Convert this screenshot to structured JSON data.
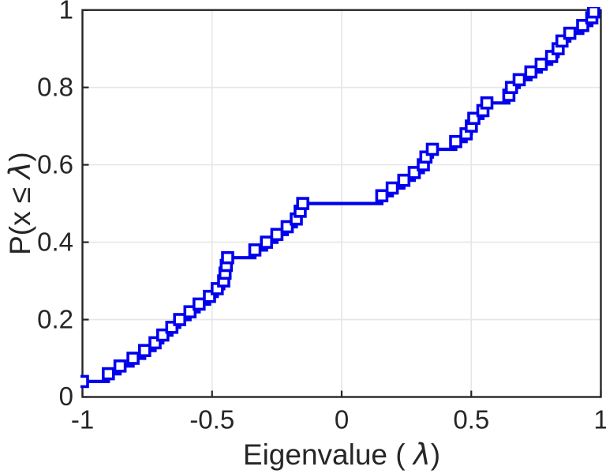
{
  "figure": {
    "background": "#ffffff"
  },
  "colors": {
    "line": "#0000EE",
    "marker_face": "#ffffff",
    "grid": "#e6e6e6",
    "axis": "#262626",
    "text": "#262626"
  },
  "chart_data": {
    "type": "line",
    "subtype": "ecdf-stairs-with-square-markers",
    "title": "",
    "xlabel": "Eigenvalue (  λ)",
    "ylabel": "P(x ≤ λ)",
    "xlim": [
      -1,
      1
    ],
    "ylim": [
      0,
      1
    ],
    "grid": true,
    "legend": "none",
    "x_ticks": [
      -1,
      -0.5,
      0,
      0.5,
      1
    ],
    "x_tick_labels": [
      "-1",
      "-0.5",
      "0",
      "0.5",
      "1"
    ],
    "y_ticks": [
      0,
      0.2,
      0.4,
      0.6,
      0.8,
      1
    ],
    "y_tick_labels": [
      "0",
      "0.2",
      "0.4",
      "0.6",
      "0.8",
      "1"
    ],
    "series": [
      {
        "name": "empirical-cdf-of-eigenvalues",
        "points": [
          [
            -1.0,
            0.04
          ],
          [
            -0.9,
            0.06
          ],
          [
            -0.855,
            0.08
          ],
          [
            -0.805,
            0.1
          ],
          [
            -0.76,
            0.12
          ],
          [
            -0.72,
            0.14
          ],
          [
            -0.69,
            0.16
          ],
          [
            -0.655,
            0.18
          ],
          [
            -0.625,
            0.2
          ],
          [
            -0.585,
            0.22
          ],
          [
            -0.55,
            0.24
          ],
          [
            -0.51,
            0.26
          ],
          [
            -0.48,
            0.28
          ],
          [
            -0.455,
            0.3
          ],
          [
            -0.45,
            0.32
          ],
          [
            -0.445,
            0.34
          ],
          [
            -0.44,
            0.36
          ],
          [
            -0.335,
            0.38
          ],
          [
            -0.29,
            0.4
          ],
          [
            -0.25,
            0.42
          ],
          [
            -0.21,
            0.44
          ],
          [
            -0.175,
            0.46
          ],
          [
            -0.16,
            0.48
          ],
          [
            -0.15,
            0.5
          ],
          [
            0.155,
            0.52
          ],
          [
            0.195,
            0.54
          ],
          [
            0.24,
            0.56
          ],
          [
            0.28,
            0.58
          ],
          [
            0.315,
            0.6
          ],
          [
            0.325,
            0.62
          ],
          [
            0.35,
            0.64
          ],
          [
            0.44,
            0.66
          ],
          [
            0.48,
            0.68
          ],
          [
            0.5,
            0.7
          ],
          [
            0.51,
            0.72
          ],
          [
            0.545,
            0.74
          ],
          [
            0.56,
            0.76
          ],
          [
            0.645,
            0.78
          ],
          [
            0.655,
            0.8
          ],
          [
            0.685,
            0.82
          ],
          [
            0.73,
            0.84
          ],
          [
            0.77,
            0.86
          ],
          [
            0.81,
            0.88
          ],
          [
            0.835,
            0.9
          ],
          [
            0.85,
            0.92
          ],
          [
            0.88,
            0.94
          ],
          [
            0.93,
            0.96
          ],
          [
            0.965,
            0.98
          ],
          [
            0.972,
            0.995
          ]
        ]
      }
    ]
  }
}
